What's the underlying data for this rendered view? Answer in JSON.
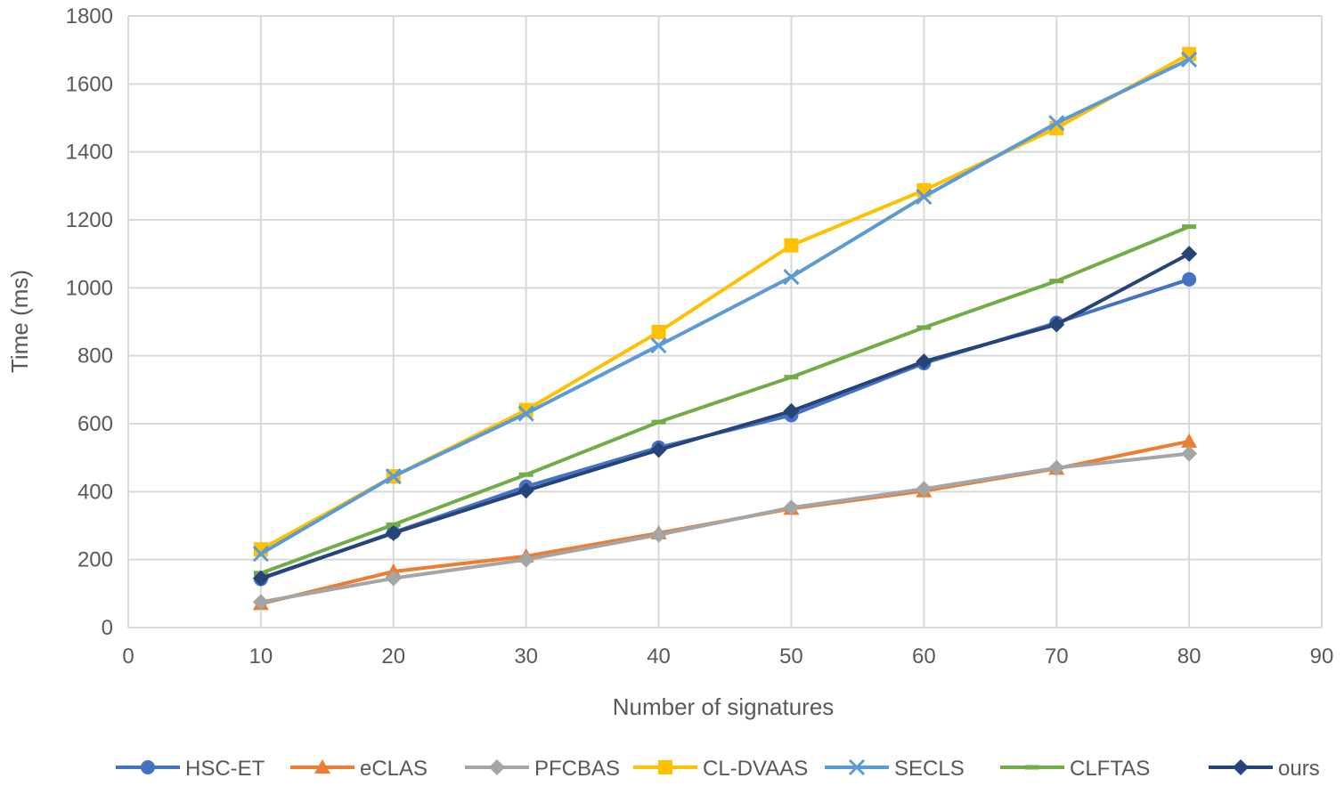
{
  "chart_data": {
    "type": "line",
    "title": "",
    "xlabel": "Number of signatures",
    "ylabel": "Time (ms)",
    "xlim": [
      0,
      90
    ],
    "ylim": [
      0,
      1800
    ],
    "xticks": [
      "0",
      "10",
      "20",
      "30",
      "40",
      "50",
      "60",
      "70",
      "80",
      "90"
    ],
    "yticks": [
      "0",
      "200",
      "400",
      "600",
      "800",
      "1000",
      "1200",
      "1400",
      "1600",
      "1800"
    ],
    "grid": true,
    "legend_position": "bottom",
    "x": [
      10,
      20,
      30,
      40,
      50,
      60,
      70,
      80
    ],
    "series": [
      {
        "name": "HSC-ET",
        "color": "#4472C4",
        "marker": "circle",
        "values": [
          143,
          280,
          415,
          530,
          625,
          778,
          897,
          1025
        ]
      },
      {
        "name": "eCLAS",
        "color": "#ED7D31",
        "marker": "triangle",
        "values": [
          70,
          165,
          210,
          278,
          350,
          402,
          468,
          548
        ]
      },
      {
        "name": "PFCBAS",
        "color": "#A5A5A5",
        "marker": "diamond",
        "values": [
          75,
          145,
          200,
          273,
          353,
          408,
          470,
          512
        ]
      },
      {
        "name": "CL-DVAAS",
        "color": "#FFC000",
        "marker": "square",
        "values": [
          230,
          445,
          640,
          870,
          1125,
          1287,
          1470,
          1688
        ]
      },
      {
        "name": "SECLS",
        "color": "#5B9BD5",
        "marker": "x",
        "values": [
          217,
          445,
          630,
          830,
          1032,
          1268,
          1485,
          1672
        ]
      },
      {
        "name": "CLFTAS",
        "color": "#70AD47",
        "marker": "dash",
        "values": [
          160,
          303,
          450,
          605,
          737,
          883,
          1020,
          1180
        ]
      },
      {
        "name": "ours",
        "color": "#264478",
        "marker": "diamond",
        "values": [
          145,
          278,
          403,
          523,
          637,
          783,
          892,
          1100
        ]
      }
    ]
  }
}
